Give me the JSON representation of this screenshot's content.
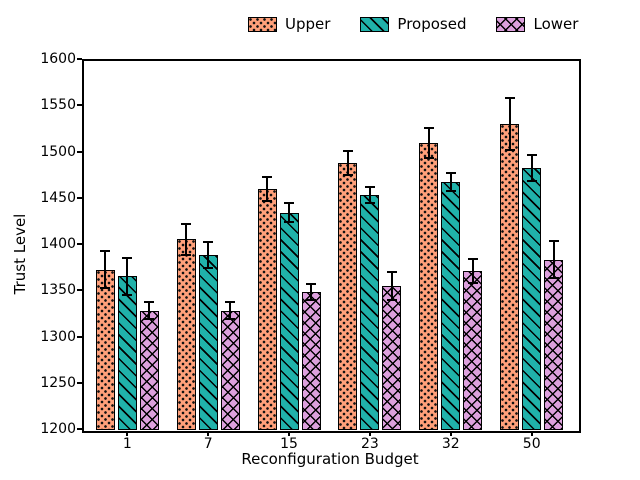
{
  "figure": {
    "background": "#ffffff"
  },
  "chart_data": {
    "type": "bar",
    "title": "",
    "xlabel": "Reconfiguration Budget",
    "ylabel": "Trust Level",
    "categories": [
      "1",
      "7",
      "15",
      "23",
      "32",
      "50"
    ],
    "ylim": [
      1200,
      1600
    ],
    "yticks": [
      1200,
      1250,
      1300,
      1350,
      1400,
      1450,
      1500,
      1550,
      1600
    ],
    "grid": false,
    "legend_position": "top-center-outside-plot",
    "error_bar_color": "#000000",
    "bar_edge_color": "#000000",
    "series": [
      {
        "name": "Upper",
        "color": "#FFA07A",
        "hatch": "dots",
        "values": [
          1372,
          1405,
          1459,
          1488,
          1509,
          1530
        ],
        "errors": [
          20,
          17,
          13,
          13,
          16,
          28
        ]
      },
      {
        "name": "Proposed",
        "color": "#20B2AA",
        "hatch": "diagonal",
        "values": [
          1365,
          1388,
          1434,
          1453,
          1467,
          1482
        ],
        "errors": [
          20,
          14,
          10,
          9,
          10,
          14
        ]
      },
      {
        "name": "Lower",
        "color": "#DDA0DD",
        "hatch": "crosshatch",
        "values": [
          1328,
          1328,
          1348,
          1355,
          1371,
          1383
        ],
        "errors": [
          9,
          9,
          9,
          15,
          13,
          20
        ]
      }
    ]
  }
}
